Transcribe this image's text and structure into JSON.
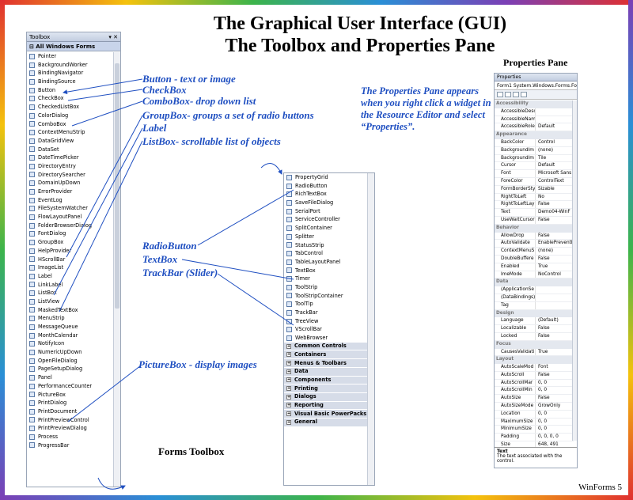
{
  "slide": {
    "title_line1": "The Graphical User Interface (GUI)",
    "title_line2": "The Toolbox and Properties Pane",
    "footer": "WinForms 5"
  },
  "toolbox": {
    "header": "Toolbox",
    "header_controls": "▾ ✕",
    "category": "⊟ All Windows Forms",
    "caption": "Forms Toolbox",
    "items": [
      "Pointer",
      "BackgroundWorker",
      "BindingNavigator",
      "BindingSource",
      "Button",
      "CheckBox",
      "CheckedListBox",
      "ColorDialog",
      "ComboBox",
      "ContextMenuStrip",
      "DataGridView",
      "DataSet",
      "DateTimePicker",
      "DirectoryEntry",
      "DirectorySearcher",
      "DomainUpDown",
      "ErrorProvider",
      "EventLog",
      "FileSystemWatcher",
      "FlowLayoutPanel",
      "FolderBrowserDialog",
      "FontDialog",
      "GroupBox",
      "HelpProvider",
      "HScrollBar",
      "ImageList",
      "Label",
      "LinkLabel",
      "ListBox",
      "ListView",
      "MaskedTextBox",
      "MenuStrip",
      "MessageQueue",
      "MonthCalendar",
      "NotifyIcon",
      "NumericUpDown",
      "OpenFileDialog",
      "PageSetupDialog",
      "Panel",
      "PerformanceCounter",
      "PictureBox",
      "PrintDialog",
      "PrintDocument",
      "PrintPreviewControl",
      "PrintPreviewDialog",
      "Process",
      "ProgressBar"
    ]
  },
  "toolbox2": {
    "items": [
      "PropertyGrid",
      "RadioButton",
      "RichTextBox",
      "SaveFileDialog",
      "SerialPort",
      "ServiceController",
      "SplitContainer",
      "Splitter",
      "StatusStrip",
      "TabControl",
      "TableLayoutPanel",
      "TextBox",
      "Timer",
      "ToolStrip",
      "ToolStripContainer",
      "ToolTip",
      "TrackBar",
      "TreeView",
      "VScrollBar",
      "WebBrowser"
    ],
    "groups": [
      "Common Controls",
      "Containers",
      "Menus & Toolbars",
      "Data",
      "Components",
      "Printing",
      "Dialogs",
      "Reporting",
      "Visual Basic PowerPacks",
      "General"
    ]
  },
  "properties": {
    "caption": "Properties Pane",
    "header": "Properties",
    "object": "Form1 System.Windows.Forms.Fo",
    "description_title": "Text",
    "description": "The text associated with the control.",
    "rows": [
      {
        "c": "Accessibility"
      },
      {
        "k": "AccessibleDesc",
        "v": ""
      },
      {
        "k": "AccessibleName",
        "v": ""
      },
      {
        "k": "AccessibleRole",
        "v": "Default"
      },
      {
        "c": "Appearance"
      },
      {
        "k": "BackColor",
        "v": "Control"
      },
      {
        "k": "BackgroundIm",
        "v": "(none)"
      },
      {
        "k": "BackgroundIm",
        "v": "Tile"
      },
      {
        "k": "Cursor",
        "v": "Default"
      },
      {
        "k": "Font",
        "v": "Microsoft Sans"
      },
      {
        "k": "ForeColor",
        "v": "ControlText"
      },
      {
        "k": "FormBorderSty",
        "v": "Sizable"
      },
      {
        "k": "RightToLeft",
        "v": "No"
      },
      {
        "k": "RightToLeftLay",
        "v": "False"
      },
      {
        "k": "Text",
        "v": "Demo04-WinF"
      },
      {
        "k": "UseWaitCursor",
        "v": "False"
      },
      {
        "c": "Behavior"
      },
      {
        "k": "AllowDrop",
        "v": "False"
      },
      {
        "k": "AutoValidate",
        "v": "EnablePreventFo"
      },
      {
        "k": "ContextMenuS",
        "v": "(none)"
      },
      {
        "k": "DoubleBuffere",
        "v": "False"
      },
      {
        "k": "Enabled",
        "v": "True"
      },
      {
        "k": "ImeMode",
        "v": "NoControl"
      },
      {
        "c": "Data"
      },
      {
        "k": "(ApplicationSe",
        "v": ""
      },
      {
        "k": "(DataBindings)",
        "v": ""
      },
      {
        "k": "Tag",
        "v": ""
      },
      {
        "c": "Design"
      },
      {
        "k": "Language",
        "v": "(Default)"
      },
      {
        "k": "Localizable",
        "v": "False"
      },
      {
        "k": "Locked",
        "v": "False"
      },
      {
        "c": "Focus"
      },
      {
        "k": "CausesValidati",
        "v": "True"
      },
      {
        "c": "Layout"
      },
      {
        "k": "AutoScaleMod",
        "v": "Font"
      },
      {
        "k": "AutoScroll",
        "v": "False"
      },
      {
        "k": "AutoScrollMar",
        "v": "0, 0"
      },
      {
        "k": "AutoScrollMin",
        "v": "0, 0"
      },
      {
        "k": "AutoSize",
        "v": "False"
      },
      {
        "k": "AutoSizeMode",
        "v": "GrowOnly"
      },
      {
        "k": "Location",
        "v": "0, 0"
      },
      {
        "k": "MaximumSize",
        "v": "0, 0"
      },
      {
        "k": "MinimumSize",
        "v": "0, 0"
      },
      {
        "k": "Padding",
        "v": "0, 0, 0, 0"
      },
      {
        "k": "Size",
        "v": "648, 491"
      }
    ]
  },
  "annotations": {
    "button": "Button - text or image",
    "checkbox": "CheckBox",
    "combobox": "ComboBox- drop down list",
    "groupbox": "GroupBox- groups a set of radio buttons",
    "label": "Label",
    "listbox": "ListBox- scrollable list of objects",
    "radiobutton": "RadioButton",
    "textbox": "TextBox",
    "trackbar": "TrackBar (Slider)",
    "picturebox": "PictureBox - display images",
    "note": "The Properties Pane appears when you right click a widget in the Resource Editor and select “Properties”."
  }
}
